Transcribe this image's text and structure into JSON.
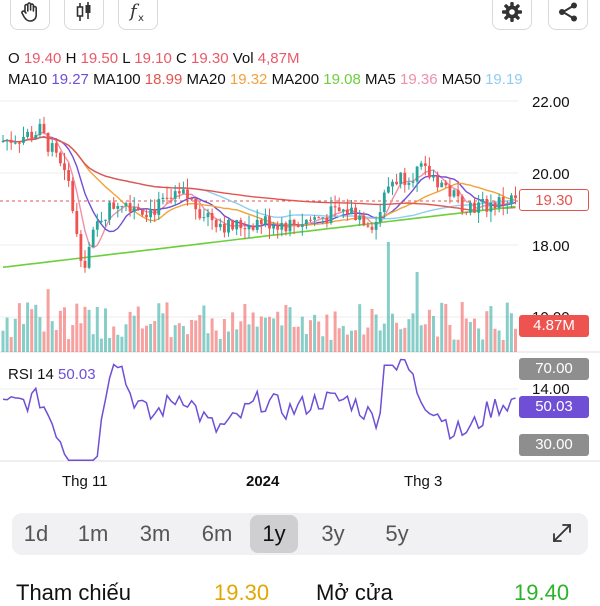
{
  "toolbar": {
    "left_buttons": [
      {
        "name": "hand-icon"
      },
      {
        "name": "candlestick-icon"
      },
      {
        "name": "function-icon"
      }
    ],
    "right_buttons": [
      {
        "name": "gear-icon"
      },
      {
        "name": "share-icon"
      }
    ]
  },
  "ohlc": {
    "o_label": "O",
    "o": "19.40",
    "h_label": "H",
    "h": "19.50",
    "l_label": "L",
    "l": "19.10",
    "c_label": "C",
    "c": "19.30",
    "vol_label": "Vol",
    "vol": "4,87M"
  },
  "ma": [
    {
      "label": "MA10",
      "value": "19.27",
      "color": "#6e4fd6"
    },
    {
      "label": "MA100",
      "value": "18.99",
      "color": "#e2554f"
    },
    {
      "label": "MA20",
      "value": "19.32",
      "color": "#f0a33a"
    },
    {
      "label": "MA200",
      "value": "19.08",
      "color": "#6ccf3c"
    },
    {
      "label": "MA5",
      "value": "19.36",
      "color": "#f08fa8"
    },
    {
      "label": "MA50",
      "value": "19.19",
      "color": "#8fcdf0"
    }
  ],
  "chart_data": {
    "type": "candlestick",
    "price_axis_ticks": [
      "22.00",
      "20.00",
      "18.00"
    ],
    "price_axis_values": [
      22,
      20,
      18
    ],
    "volume_axis_tick": "10.00",
    "current_price": "19.30",
    "current_price_value": 19.3,
    "current_volume": "4.87M",
    "x_tick_labels": [
      "Thg 11",
      "2024",
      "Thg 3"
    ],
    "rsi": {
      "label": "RSI 14",
      "value": "50.03",
      "levels": [
        "70.00",
        "30.00"
      ],
      "extra_tick": "14.00"
    },
    "colors": {
      "up": "#26a69a",
      "down": "#ef5350",
      "rsi": "#6e4fd6",
      "price_line": "#e2554f"
    }
  },
  "timeframes": {
    "items": [
      "1d",
      "1m",
      "3m",
      "6m",
      "1y",
      "3y",
      "5y"
    ],
    "active": "1y"
  },
  "footer": {
    "ref_label": "Tham chiếu",
    "ref_value": "19.30",
    "ref_color": "#e0a800",
    "open_label": "Mở cửa",
    "open_value": "19.40",
    "open_color": "#2bb32b"
  }
}
